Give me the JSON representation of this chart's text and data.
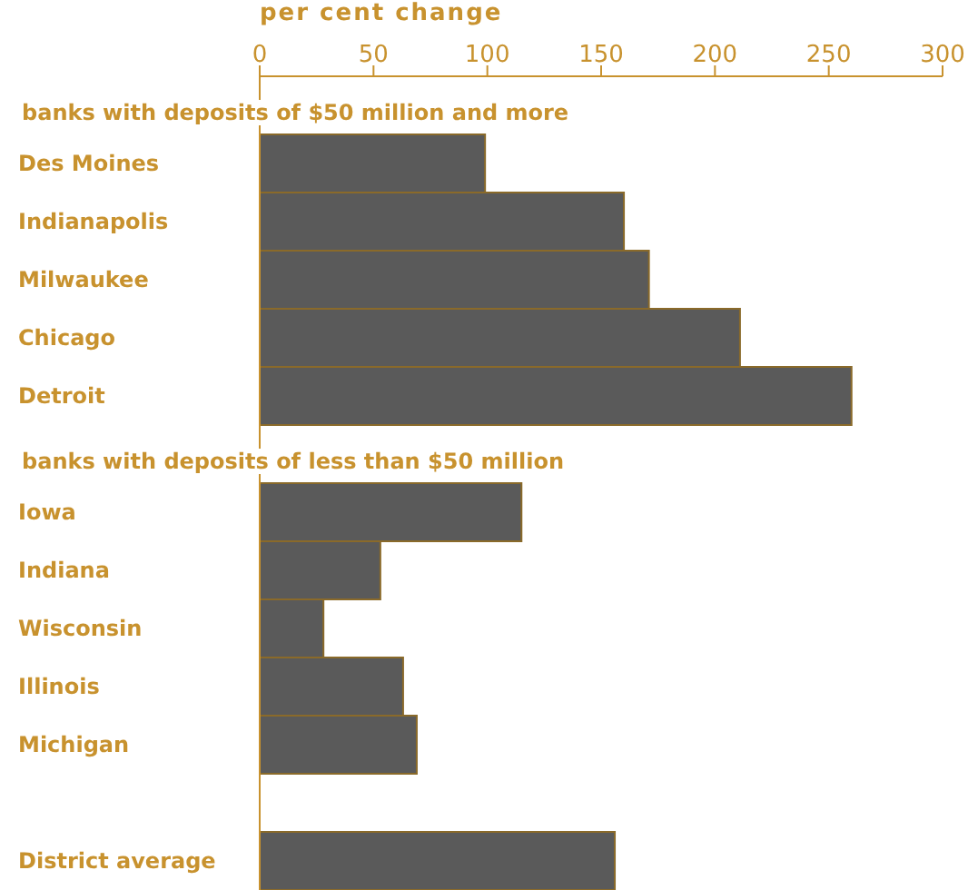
{
  "chart_data": {
    "type": "bar",
    "orientation": "horizontal",
    "xlabel": "per cent change",
    "categories": [
      null,
      "Des Moines",
      "Indianapolis",
      "Milwaukee",
      "Chicago",
      "Detroit",
      null,
      "Iowa",
      "Indiana",
      "Wisconsin",
      "Illinois",
      "Michigan",
      null,
      "District average"
    ],
    "values": [
      null,
      99,
      160,
      171,
      211,
      260,
      null,
      115,
      53,
      28,
      63,
      69,
      null,
      156
    ],
    "color": "#5a5a5a",
    "xlim": [
      0,
      300
    ],
    "xticks": [
      0,
      50,
      100,
      150,
      200,
      250,
      300
    ],
    "annotations": [
      "banks with deposits of $50 million and more",
      "banks with deposits of less than $50 million"
    ]
  }
}
